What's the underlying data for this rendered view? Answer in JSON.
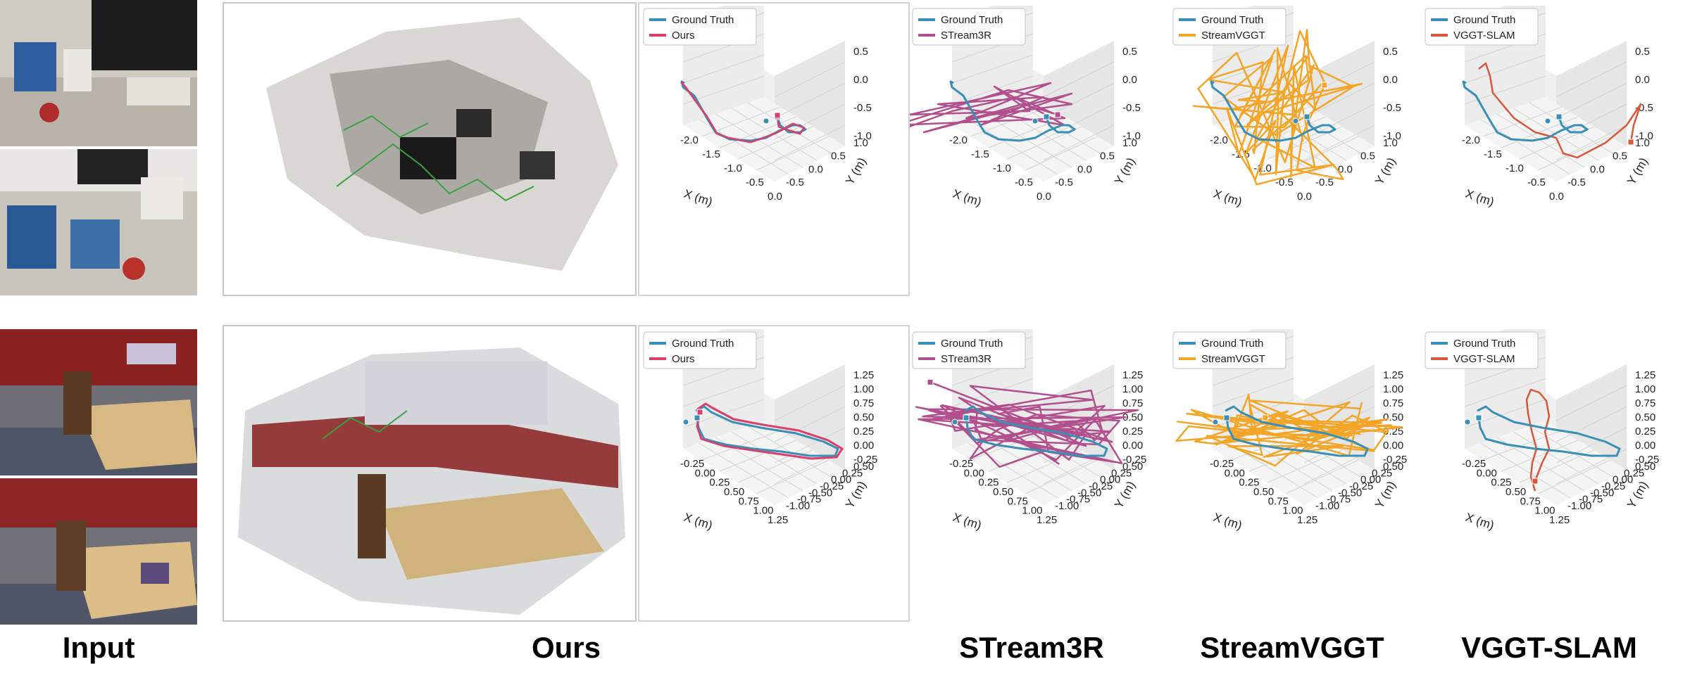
{
  "captions": {
    "input": "Input",
    "ours": "Ours",
    "stream3r": "STream3R",
    "streamvggt": "StreamVGGT",
    "vggtslam": "VGGT-SLAM"
  },
  "legend": {
    "ground_truth": "Ground Truth",
    "ours": "Ours",
    "stream3r": "STream3R",
    "streamvggt": "StreamVGGT",
    "vggtslam": "VGGT-SLAM"
  },
  "colors": {
    "ground_truth": "#3a8fb7",
    "ours": "#d9406a",
    "stream3r": "#b24f8d",
    "streamvggt": "#f2a526",
    "vggtslam": "#d9573a"
  },
  "chart_data": [
    {
      "type": "line",
      "scene": "row1",
      "xlabel": "X (m)",
      "ylabel": "Y (m)",
      "xticks": [
        "-2.0",
        "-1.5",
        "-1.0",
        "-0.5",
        "0.0"
      ],
      "yticks": [
        "-0.5",
        "0.0",
        "0.5",
        "1.0"
      ],
      "zticks": [
        "0.5",
        "0.0",
        "-0.5",
        "-1.0"
      ],
      "series": [
        "Ground Truth",
        "Ours",
        "STream3R",
        "StreamVGGT",
        "VGGT-SLAM"
      ]
    },
    {
      "type": "line",
      "scene": "row2",
      "xlabel": "X (m)",
      "ylabel": "Y (m)",
      "xticks": [
        "-0.25",
        "0.00",
        "0.25",
        "0.50",
        "0.75",
        "1.00",
        "1.25"
      ],
      "yticks": [
        "-1.00",
        "-0.75",
        "-0.50",
        "-0.25",
        "0.00",
        "0.25",
        "0.50"
      ],
      "zticks": [
        "1.25",
        "1.00",
        "0.75",
        "0.50",
        "0.25",
        "0.00",
        "-0.25"
      ],
      "series": [
        "Ground Truth",
        "Ours",
        "STream3R",
        "StreamVGGT",
        "VGGT-SLAM"
      ]
    }
  ]
}
